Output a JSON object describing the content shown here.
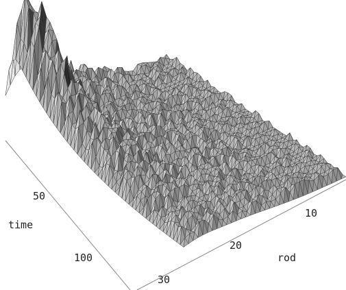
{
  "chart_data": {
    "type": "surface3d",
    "title": "",
    "xlabel": "rod",
    "ylabel": "time",
    "zlabel": "",
    "x_ticks": [
      "10",
      "20",
      "30"
    ],
    "y_ticks": [
      "50",
      "100"
    ],
    "x_range": [
      1,
      35
    ],
    "y_range": [
      1,
      130
    ],
    "grid": false,
    "legend": "none",
    "surface": {
      "description_values": {
        "peak_rod": 32,
        "peak_time": 8,
        "peak_height": 1.0,
        "noise_floor": 0.18,
        "decay_time_scale": 35
      }
    },
    "colors": {
      "face_light": "#e6e6e6",
      "face_mid": "#a8a8a8",
      "face_dark": "#2a2a2a",
      "edge": "#3a3a3a",
      "background": "#ffffff"
    }
  }
}
